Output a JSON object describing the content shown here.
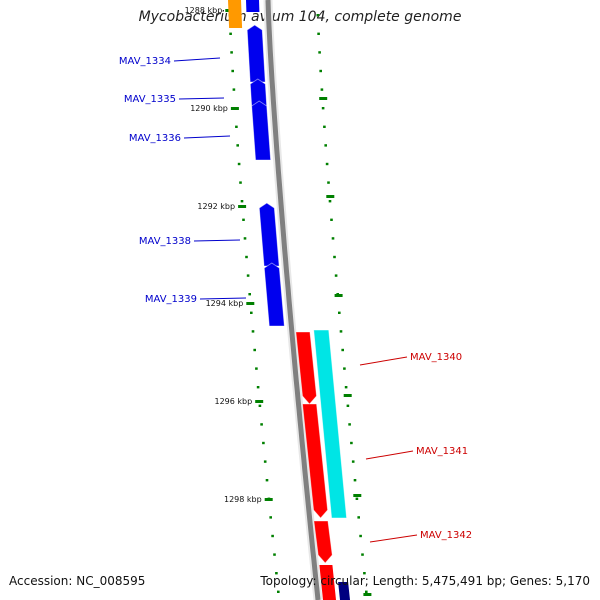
{
  "title": "Mycobacterium avium 104, complete genome",
  "accession": "Accession: NC_008595",
  "summary": "Topology: circular; Length: 5,475,491 bp; Genes: 5,170",
  "colors": {
    "forward_cds": "#ff0000",
    "reverse_cds": "#0000ee",
    "cyan_feature": "#00e5e5",
    "orange_feature": "#ff9900",
    "backbone": "#808080",
    "tick": "#008000",
    "forward_label": "#cc0000",
    "reverse_label": "#0000cc"
  },
  "kbp_ticks": [
    {
      "label": "1288 kbp"
    },
    {
      "label": "1290 kbp"
    },
    {
      "label": "1292 kbp"
    },
    {
      "label": "1294 kbp"
    },
    {
      "label": "1296 kbp"
    },
    {
      "label": "1298 kbp"
    }
  ],
  "genes": [
    {
      "label": "MAV_1334",
      "strand": "reverse"
    },
    {
      "label": "MAV_1335",
      "strand": "reverse"
    },
    {
      "label": "MAV_1336",
      "strand": "reverse"
    },
    {
      "label": "MAV_1338",
      "strand": "reverse"
    },
    {
      "label": "MAV_1339",
      "strand": "reverse"
    },
    {
      "label": "MAV_1340",
      "strand": "forward"
    },
    {
      "label": "MAV_1341",
      "strand": "forward"
    },
    {
      "label": "MAV_1342",
      "strand": "forward"
    }
  ]
}
